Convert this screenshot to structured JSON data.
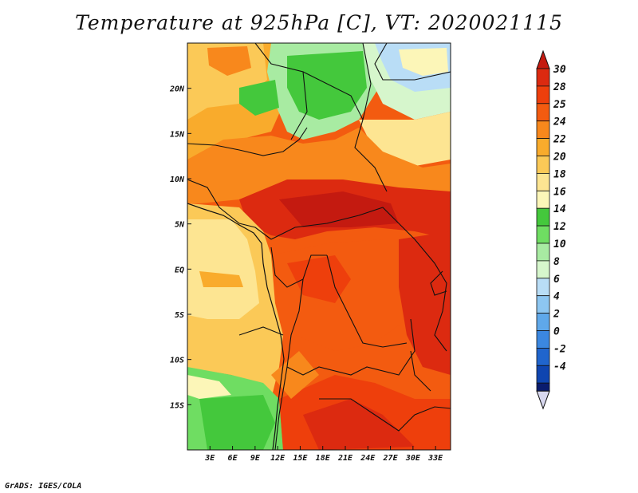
{
  "title": "Temperature at 925hPa [C], VT: 2020021115",
  "credit": "GrADS: IGES/COLA",
  "map": {
    "lon_range": [
      0,
      35
    ],
    "lat_range": [
      -20,
      25
    ],
    "x_ticks": [
      {
        "value": 3,
        "label": "3E"
      },
      {
        "value": 6,
        "label": "6E"
      },
      {
        "value": 9,
        "label": "9E"
      },
      {
        "value": 12,
        "label": "12E"
      },
      {
        "value": 15,
        "label": "15E"
      },
      {
        "value": 18,
        "label": "18E"
      },
      {
        "value": 21,
        "label": "21E"
      },
      {
        "value": 24,
        "label": "24E"
      },
      {
        "value": 27,
        "label": "27E"
      },
      {
        "value": 30,
        "label": "30E"
      },
      {
        "value": 33,
        "label": "33E"
      }
    ],
    "y_ticks": [
      {
        "value": 20,
        "label": "20N"
      },
      {
        "value": 15,
        "label": "15N"
      },
      {
        "value": 10,
        "label": "10N"
      },
      {
        "value": 5,
        "label": "5N"
      },
      {
        "value": 0,
        "label": "EQ"
      },
      {
        "value": -5,
        "label": "5S"
      },
      {
        "value": -10,
        "label": "10S"
      },
      {
        "value": -15,
        "label": "15S"
      }
    ]
  },
  "colorbar": {
    "levels": [
      {
        "label": "30",
        "color": "#dc2a10"
      },
      {
        "label": "28",
        "color": "#ee3f0c"
      },
      {
        "label": "25",
        "color": "#f35b10"
      },
      {
        "label": "24",
        "color": "#f8881c"
      },
      {
        "label": "22",
        "color": "#f9ab2c"
      },
      {
        "label": "20",
        "color": "#fbc957"
      },
      {
        "label": "18",
        "color": "#fde592"
      },
      {
        "label": "16",
        "color": "#fcf6b8"
      },
      {
        "label": "14",
        "color": "#44c83c"
      },
      {
        "label": "12",
        "color": "#6fdd62"
      },
      {
        "label": "10",
        "color": "#a8eba2"
      },
      {
        "label": "8",
        "color": "#d6f6cc"
      },
      {
        "label": "6",
        "color": "#b9ddf6"
      },
      {
        "label": "4",
        "color": "#8dc6f1"
      },
      {
        "label": "2",
        "color": "#5fa8ea"
      },
      {
        "label": "0",
        "color": "#3b87e0"
      },
      {
        "label": "-2",
        "color": "#2065cd"
      },
      {
        "label": "-4",
        "color": "#0f45b0"
      }
    ],
    "top_color": "#c41a10",
    "bottom_color": "#0a1c6e",
    "below_color": "#d8d8ef"
  }
}
